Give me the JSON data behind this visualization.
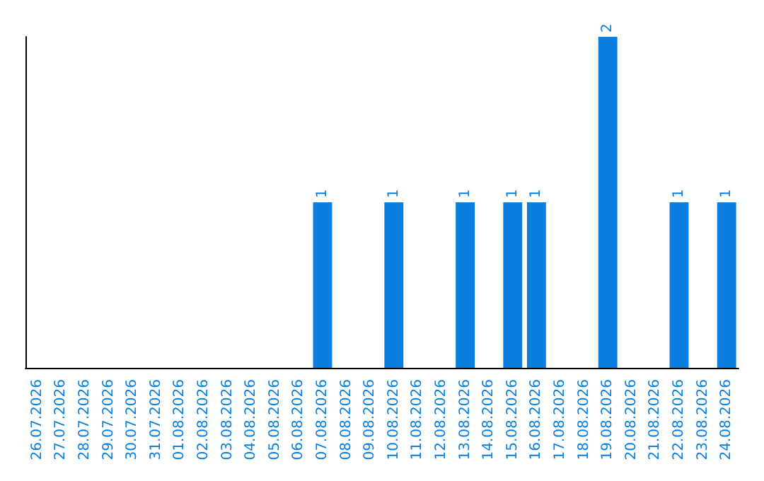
{
  "chart_data": {
    "type": "bar",
    "categories": [
      "26.07.2026",
      "27.07.2026",
      "28.07.2026",
      "29.07.2026",
      "30.07.2026",
      "31.07.2026",
      "01.08.2026",
      "02.08.2026",
      "03.08.2026",
      "04.08.2026",
      "05.08.2026",
      "06.08.2026",
      "07.08.2026",
      "08.08.2026",
      "09.08.2026",
      "10.08.2026",
      "11.08.2026",
      "12.08.2026",
      "13.08.2026",
      "14.08.2026",
      "15.08.2026",
      "16.08.2026",
      "17.08.2026",
      "18.08.2026",
      "19.08.2026",
      "20.08.2026",
      "21.08.2026",
      "22.08.2026",
      "23.08.2026",
      "24.08.2026"
    ],
    "values": [
      null,
      null,
      null,
      null,
      null,
      null,
      null,
      null,
      null,
      null,
      null,
      null,
      1,
      null,
      null,
      1,
      null,
      null,
      1,
      null,
      1,
      1,
      null,
      null,
      2,
      null,
      null,
      1,
      null,
      1
    ],
    "color": "#0a7fe0",
    "data_labels": true,
    "tick_labels": "x"
  }
}
